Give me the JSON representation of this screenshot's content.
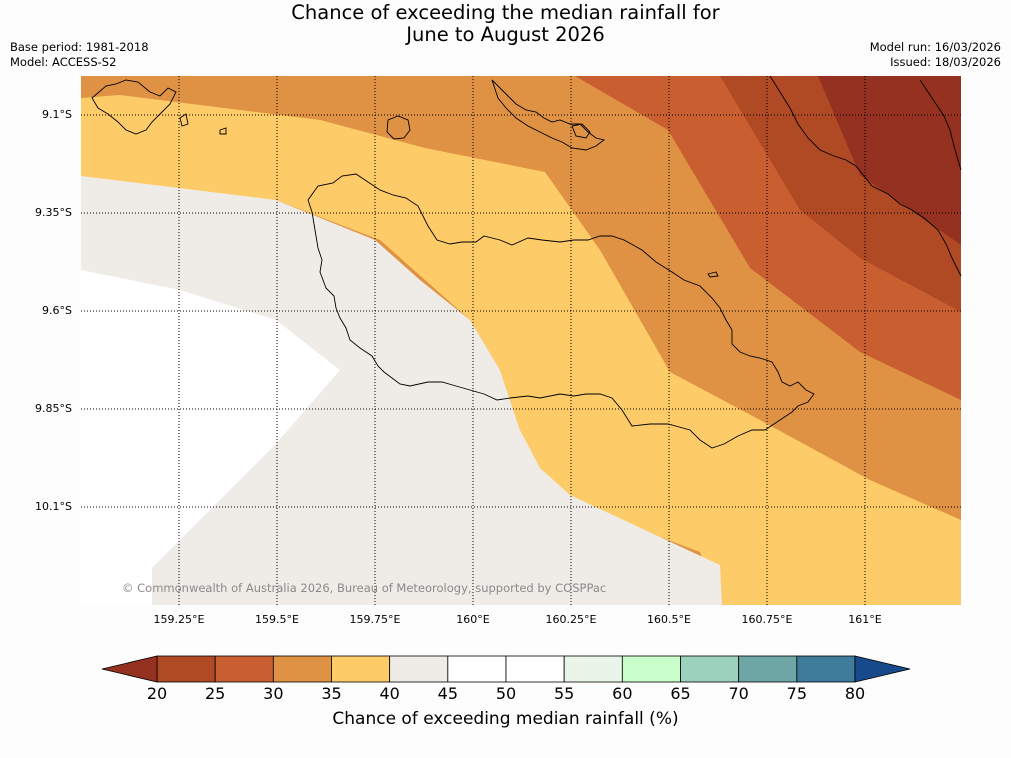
{
  "title": {
    "line1": "Chance of exceeding the median rainfall for",
    "line2": "June to August 2026"
  },
  "meta": {
    "base_period": "Base period: 1981-2018",
    "model": "Model: ACCESS-S2",
    "model_run": "Model run: 16/03/2026",
    "issued": "Issued: 18/03/2026"
  },
  "map": {
    "lat_labels": [
      "9.1°S",
      "9.35°S",
      "9.6°S",
      "9.85°S",
      "10.1°S"
    ],
    "lon_labels": [
      "159.25°E",
      "159.5°E",
      "159.75°E",
      "160°E",
      "160.25°E",
      "160.5°E",
      "160.75°E",
      "161°E"
    ],
    "copyright": "© Commonwealth of Australia 2026, Bureau of Meteorology, supported by COSPPac",
    "colors": {
      "c20_25": "#b04a24",
      "c25_30": "#c95f30",
      "c30_35": "#df9243",
      "c35_40": "#fdcb67",
      "c40_45": "#efebe6",
      "c45_55": "#ffffff",
      "below20": "#943120"
    }
  },
  "colorbar": {
    "ticks": [
      "20",
      "25",
      "30",
      "35",
      "40",
      "45",
      "50",
      "55",
      "60",
      "65",
      "70",
      "75",
      "80"
    ],
    "colors": [
      "#b04a24",
      "#c95f30",
      "#df9243",
      "#fdcb67",
      "#efebe6",
      "#ffffff",
      "#ffffff",
      "#eaf5ea",
      "#c9fdc9",
      "#9cd2bb",
      "#6da6a5",
      "#3f7b9b"
    ],
    "low_color": "#943120",
    "high_color": "#174a8b",
    "label": "Chance of exceeding median rainfall (%)"
  }
}
